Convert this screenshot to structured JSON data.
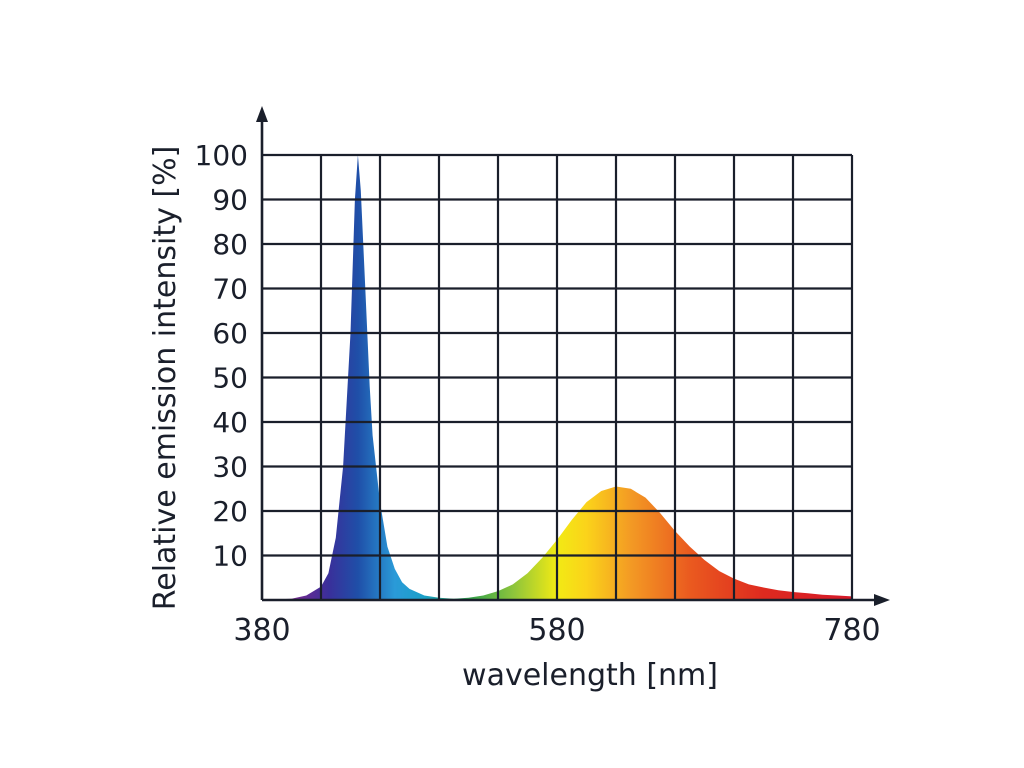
{
  "chart_data": {
    "type": "area",
    "title": "",
    "xlabel": "wavelength [nm]",
    "ylabel": "Relative emission intensity [%]",
    "xlim": [
      380,
      780
    ],
    "ylim": [
      0,
      100
    ],
    "x_tick_labels": [
      "380",
      "580",
      "780"
    ],
    "x_tick_values": [
      380,
      580,
      780
    ],
    "y_tick_values": [
      10,
      20,
      30,
      40,
      50,
      60,
      70,
      80,
      90,
      100
    ],
    "y_tick_labels": [
      "10",
      "20",
      "30",
      "40",
      "50",
      "60",
      "70",
      "80",
      "90",
      "100"
    ],
    "grid": true,
    "fill": "visible-spectrum gradient",
    "series": [
      {
        "x": [
          380,
          400,
          410,
          420,
          425,
          430,
          435,
          440,
          443,
          445,
          447,
          450,
          453,
          455,
          460,
          465,
          470,
          475,
          480,
          490,
          500,
          510,
          520,
          530,
          540,
          550,
          560,
          570,
          580,
          590,
          600,
          610,
          620,
          630,
          640,
          650,
          660,
          670,
          680,
          690,
          700,
          710,
          720,
          730,
          740,
          750,
          760,
          770,
          780
        ],
        "y": [
          0,
          0.3,
          1,
          3,
          6,
          14,
          30,
          60,
          90,
          100,
          92,
          70,
          48,
          37,
          22,
          12,
          7,
          4,
          2.5,
          1,
          0.5,
          0.3,
          0.5,
          1,
          2,
          3.5,
          6,
          9.5,
          13.5,
          18,
          22,
          24.5,
          25.5,
          25,
          23,
          19.5,
          15.5,
          12,
          9,
          6.5,
          4.8,
          3.5,
          2.8,
          2.2,
          1.8,
          1.5,
          1.2,
          1,
          0.8
        ]
      }
    ]
  },
  "colors": {
    "axis": "#1a1f2b",
    "spectrum_stops": [
      {
        "nm": 400,
        "color": "#7a2a90"
      },
      {
        "nm": 425,
        "color": "#3a2f9a"
      },
      {
        "nm": 445,
        "color": "#1f4fa8"
      },
      {
        "nm": 470,
        "color": "#2a9ad8"
      },
      {
        "nm": 490,
        "color": "#1aa0c8"
      },
      {
        "nm": 520,
        "color": "#2fa04a"
      },
      {
        "nm": 550,
        "color": "#8cc43c"
      },
      {
        "nm": 580,
        "color": "#f2ea14"
      },
      {
        "nm": 600,
        "color": "#fbd31a"
      },
      {
        "nm": 630,
        "color": "#f39a24"
      },
      {
        "nm": 670,
        "color": "#ea5a1f"
      },
      {
        "nm": 720,
        "color": "#de2a1f"
      },
      {
        "nm": 780,
        "color": "#d51a2a"
      }
    ]
  }
}
